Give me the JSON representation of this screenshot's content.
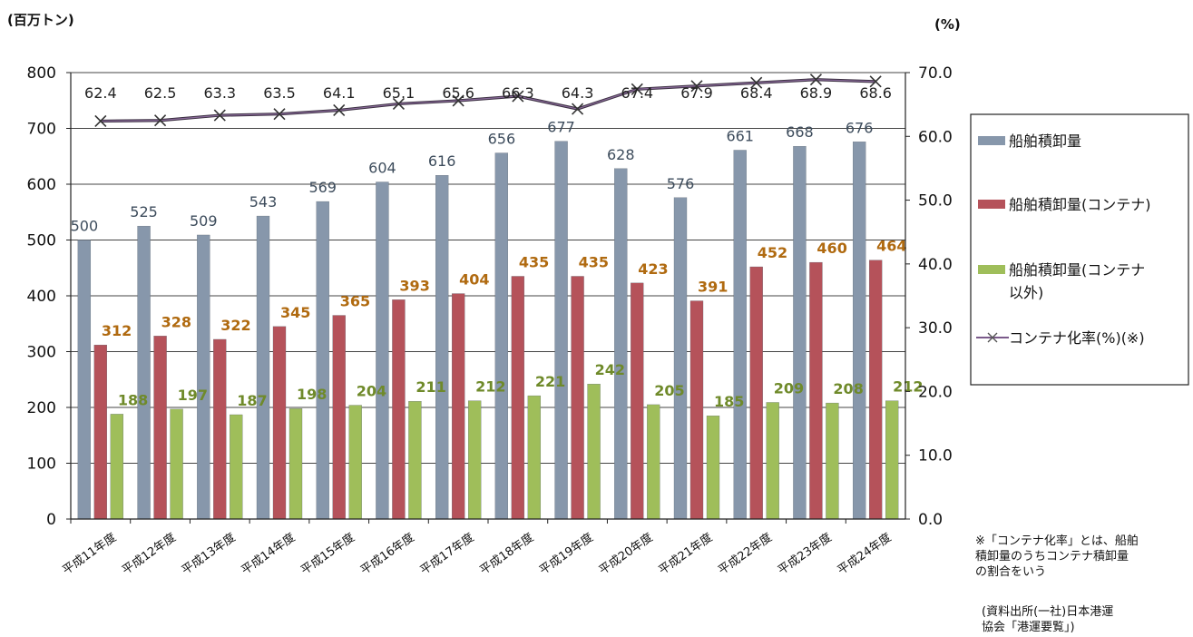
{
  "chart_data": {
    "type": "bar",
    "categories": [
      "平成11年度",
      "平成12年度",
      "平成13年度",
      "平成14年度",
      "平成15年度",
      "平成16年度",
      "平成17年度",
      "平成18年度",
      "平成19年度",
      "平成20年度",
      "平成21年度",
      "平成22年度",
      "平成23年度",
      "平成24年度"
    ],
    "series": [
      {
        "name": "船舶積卸量",
        "type": "bar",
        "axis": "left",
        "color": "#8797ab",
        "values": [
          500,
          525,
          509,
          543,
          569,
          604,
          616,
          656,
          677,
          628,
          576,
          661,
          668,
          676
        ]
      },
      {
        "name": "船舶積卸量(コンテナ)",
        "type": "bar",
        "axis": "left",
        "color": "#b5525a",
        "values": [
          312,
          328,
          322,
          345,
          365,
          393,
          404,
          435,
          435,
          423,
          391,
          452,
          460,
          464
        ]
      },
      {
        "name": "船舶積卸量(コンテナ以外)",
        "type": "bar",
        "axis": "left",
        "color": "#9fbe5a",
        "values": [
          188,
          197,
          187,
          198,
          204,
          211,
          212,
          221,
          242,
          205,
          185,
          209,
          208,
          212
        ]
      },
      {
        "name": "コンテナ化率(%)(※)",
        "type": "line",
        "axis": "right",
        "color": "#333333",
        "line_color": "#7a5a8a",
        "values": [
          62.4,
          62.5,
          63.3,
          63.5,
          64.1,
          65.1,
          65.6,
          66.3,
          64.3,
          67.4,
          67.9,
          68.4,
          68.9,
          68.6
        ]
      }
    ],
    "left_unit": "(百万トン)",
    "right_unit": "(%)",
    "ylim_left": [
      0,
      800
    ],
    "yticks_left": [
      "0",
      "100",
      "200",
      "300",
      "400",
      "500",
      "600",
      "700",
      "800"
    ],
    "ylim_right": [
      0,
      70
    ],
    "yticks_right": [
      "0.0",
      "10.0",
      "20.0",
      "30.0",
      "40.0",
      "50.0",
      "60.0",
      "70.0"
    ],
    "grid": true,
    "legend_position": "right"
  },
  "legend": {
    "items": [
      {
        "line1": "船舶積卸量",
        "line2": ""
      },
      {
        "line1": "船舶積卸量(コンテナ)",
        "line2": ""
      },
      {
        "line1": "船舶積卸量(コンテナ",
        "line2": "以外)"
      },
      {
        "line1": "コンテナ化率(%)(※)",
        "line2": ""
      }
    ]
  },
  "notes": {
    "definition": [
      "※「コンテナ化率」とは、船舶",
      "積卸量のうちコンテナ積卸量",
      "の割合をいう"
    ],
    "source": [
      "(資料出所(一社)日本港運",
      "協会「港運要覧」)"
    ]
  }
}
